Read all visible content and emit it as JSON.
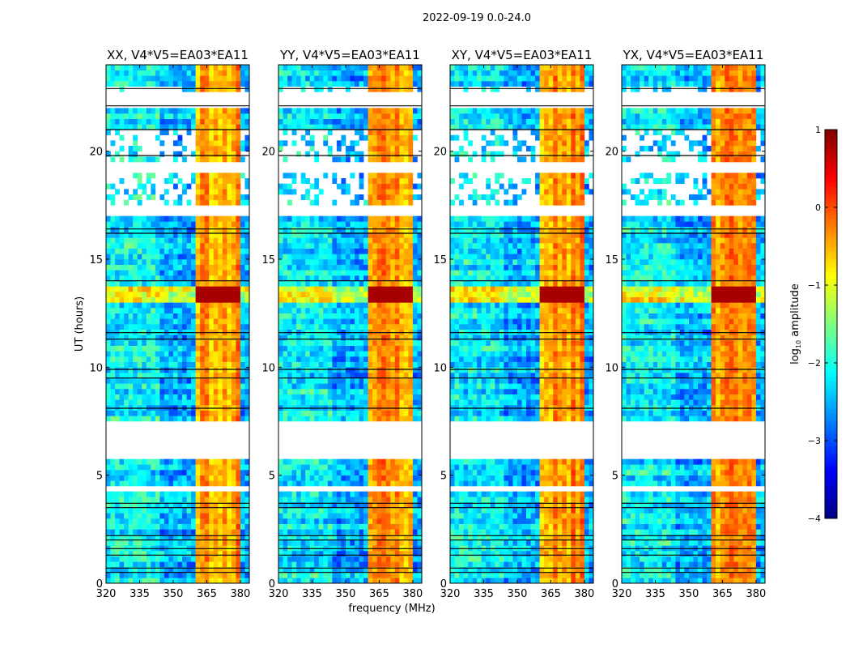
{
  "chart_data": {
    "type": "heatmap",
    "suptitle": "2022-09-19 0.0-24.0",
    "xlabel": "frequency (MHz)",
    "ylabel": "UT (hours)",
    "xlim": [
      320,
      384
    ],
    "ylim": [
      0,
      24
    ],
    "xticks": [
      "320",
      "335",
      "350",
      "365",
      "380"
    ],
    "xtick_values": [
      320,
      335,
      350,
      365,
      380
    ],
    "yticks": [
      "0",
      "5",
      "10",
      "15",
      "20"
    ],
    "ytick_values": [
      0,
      5,
      10,
      15,
      20
    ],
    "panels": [
      {
        "title": "XX, V4*V5=EA03*EA11",
        "seed": 11
      },
      {
        "title": "YY, V4*V5=EA03*EA11",
        "seed": 23
      },
      {
        "title": "XY, V4*V5=EA03*EA11",
        "seed": 37
      },
      {
        "title": "YX, V4*V5=EA03*EA11",
        "seed": 51
      }
    ],
    "colorbar": {
      "label_main": "log",
      "label_sub": "10",
      "label_rest": " amplitude",
      "colormap": "jet",
      "vmin": -4,
      "vmax": 1,
      "ticks": [
        "1",
        "0",
        "−1",
        "−2",
        "−3",
        "−4"
      ],
      "tick_values": [
        1,
        0,
        -1,
        -2,
        -3,
        -4
      ]
    },
    "model": {
      "time_bin_hours": 0.25,
      "freq_bin_mhz": 2,
      "background_log_amp": -2.5,
      "rfi_band_mhz": [
        361,
        381
      ],
      "rfi_log_amp": -0.4,
      "hot_interval_hours": [
        13.0,
        13.75
      ],
      "hot_log_amp": 0.8,
      "flagged_intervals_hours": [
        [
          5.8,
          7.6
        ],
        [
          16.9,
          17.6
        ],
        [
          19.1,
          19.6
        ],
        [
          22.1,
          22.8
        ],
        [
          4.2,
          4.4
        ]
      ],
      "sparse_intervals_hours": [
        [
          17.6,
          19.1
        ],
        [
          19.6,
          21.0
        ],
        [
          22.8,
          23.0
        ]
      ],
      "black_lines_hours": [
        0.5,
        0.7,
        1.3,
        1.6,
        2.0,
        2.2,
        3.5,
        3.7,
        8.1,
        9.5,
        9.9,
        11.3,
        11.6,
        14.0,
        16.2,
        16.4,
        19.8,
        21.0,
        22.1,
        22.9
      ]
    }
  }
}
